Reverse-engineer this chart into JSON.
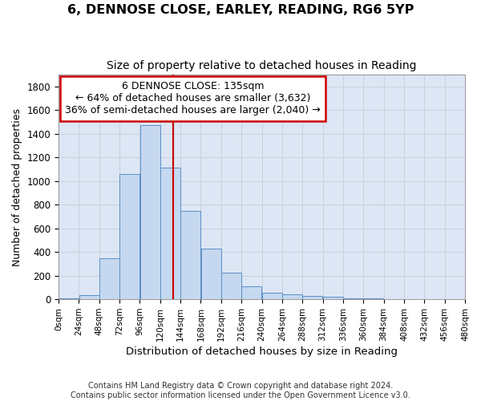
{
  "title": "6, DENNOSE CLOSE, EARLEY, READING, RG6 5YP",
  "subtitle": "Size of property relative to detached houses in Reading",
  "xlabel": "Distribution of detached houses by size in Reading",
  "ylabel": "Number of detached properties",
  "bar_values": [
    10,
    35,
    350,
    1060,
    1470,
    1110,
    750,
    430,
    225,
    110,
    55,
    45,
    30,
    20,
    8,
    5,
    4,
    2,
    2,
    1
  ],
  "bin_edges": [
    0,
    24,
    48,
    72,
    96,
    120,
    144,
    168,
    192,
    216,
    240,
    264,
    288,
    312,
    336,
    360,
    384,
    408,
    432,
    456,
    480
  ],
  "tick_labels": [
    "0sqm",
    "24sqm",
    "48sqm",
    "72sqm",
    "96sqm",
    "120sqm",
    "144sqm",
    "168sqm",
    "192sqm",
    "216sqm",
    "240sqm",
    "264sqm",
    "288sqm",
    "312sqm",
    "336sqm",
    "360sqm",
    "384sqm",
    "408sqm",
    "432sqm",
    "456sqm",
    "480sqm"
  ],
  "bar_facecolor": "#c5d8f0",
  "bar_edgecolor": "#5b8ec4",
  "vline_x": 135,
  "vline_color": "#cc0000",
  "annotation_text": "6 DENNOSE CLOSE: 135sqm\n← 64% of detached houses are smaller (3,632)\n36% of semi-detached houses are larger (2,040) →",
  "annotation_box_color": "#cc0000",
  "ylim": [
    0,
    1900
  ],
  "yticks": [
    0,
    200,
    400,
    600,
    800,
    1000,
    1200,
    1400,
    1600,
    1800
  ],
  "grid_color": "#c8d0dc",
  "bg_color": "#dce6f5",
  "fig_bg_color": "#ffffff",
  "footer1": "Contains HM Land Registry data © Crown copyright and database right 2024.",
  "footer2": "Contains public sector information licensed under the Open Government Licence v3.0."
}
